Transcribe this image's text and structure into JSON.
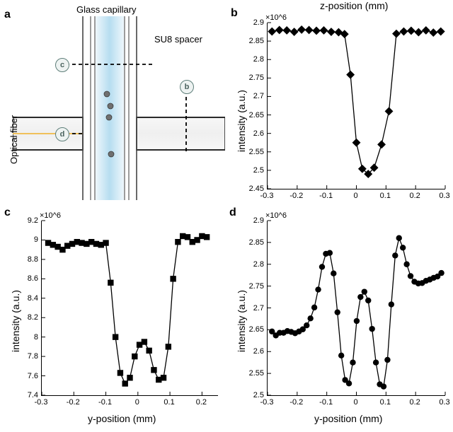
{
  "global": {
    "fg": "#000000",
    "line_color": "#000000",
    "marker_fill": "#000000",
    "line_width": 1.3,
    "marker_size": 4.2,
    "tick_fontsize": 11,
    "label_fontsize": 14,
    "panel_label_fontsize": 16
  },
  "panelA": {
    "letter": "a",
    "labels": {
      "top": "Glass capillary",
      "right": "SU8 spacer",
      "left_rot": "Optical fiber"
    },
    "tag_c": "c",
    "tag_d": "d",
    "tag_b": "b",
    "colors": {
      "capillary_fill_a": "#dff0fa",
      "capillary_fill_b": "#b8ddee",
      "capillary_outline": "#4e4e4e",
      "fiber_core": "#f5c468",
      "spacer_outline": "#3b3b3b",
      "spacer_fill": "#f4f4f4",
      "particle": "#6b6b6b"
    }
  },
  "panelB": {
    "letter": "b",
    "xlabel": "z-position (mm)",
    "ylabel": "intensity (a.u.)",
    "exp": "×10^6",
    "marker_shape": "diamond",
    "xlim": [
      -0.3,
      0.3
    ],
    "ylim": [
      2.45,
      2.9
    ],
    "xticks": [
      -0.3,
      -0.2,
      -0.1,
      0,
      0.1,
      0.2,
      0.3
    ],
    "yticks": [
      2.45,
      2.5,
      2.55,
      2.6,
      2.65,
      2.7,
      2.75,
      2.8,
      2.85,
      2.9
    ],
    "xtick_labels": [
      "-0.3",
      "-0.2",
      "-0.1",
      "0",
      "0.1",
      "0.2",
      "0.3"
    ],
    "ytick_labels": [
      "2.45",
      "2.5",
      "2.55",
      "2.6",
      "2.65",
      "2.7",
      "2.75",
      "2.8",
      "2.85",
      "2.9"
    ],
    "x": [
      -0.285,
      -0.26,
      -0.235,
      -0.21,
      -0.185,
      -0.16,
      -0.135,
      -0.11,
      -0.085,
      -0.06,
      -0.04,
      -0.02,
      0.0,
      0.02,
      0.04,
      0.06,
      0.085,
      0.11,
      0.135,
      0.16,
      0.185,
      0.21,
      0.235,
      0.26,
      0.285
    ],
    "y": [
      2.876,
      2.88,
      2.879,
      2.875,
      2.881,
      2.88,
      2.878,
      2.879,
      2.875,
      2.874,
      2.869,
      2.759,
      2.575,
      2.504,
      2.49,
      2.507,
      2.57,
      2.66,
      2.87,
      2.876,
      2.878,
      2.874,
      2.879,
      2.873,
      2.876
    ]
  },
  "panelC": {
    "letter": "c",
    "xlabel": "y-position (mm)",
    "ylabel": "intensity (a.u.)",
    "exp": "×10^6",
    "marker_shape": "square",
    "xlim": [
      -0.3,
      0.25
    ],
    "ylim": [
      7.4,
      9.2
    ],
    "xticks": [
      -0.3,
      -0.2,
      -0.1,
      0,
      0.1,
      0.2
    ],
    "yticks": [
      7.4,
      7.6,
      7.8,
      8.0,
      8.2,
      8.4,
      8.6,
      8.8,
      9.0,
      9.2
    ],
    "xtick_labels": [
      "-0.3",
      "-0.2",
      "-0.1",
      "0",
      "0.1",
      "0.2"
    ],
    "ytick_labels": [
      "7.4",
      "7.6",
      "7.8",
      "8",
      "8.2",
      "8.4",
      "8.6",
      "8.8",
      "9",
      "9.2"
    ],
    "x": [
      -0.28,
      -0.265,
      -0.25,
      -0.235,
      -0.22,
      -0.205,
      -0.19,
      -0.175,
      -0.16,
      -0.145,
      -0.13,
      -0.115,
      -0.1,
      -0.085,
      -0.07,
      -0.055,
      -0.04,
      -0.025,
      -0.01,
      0.005,
      0.02,
      0.035,
      0.05,
      0.065,
      0.08,
      0.095,
      0.11,
      0.125,
      0.14,
      0.155,
      0.17,
      0.185,
      0.2,
      0.215
    ],
    "y": [
      8.97,
      8.95,
      8.93,
      8.9,
      8.94,
      8.96,
      8.98,
      8.97,
      8.96,
      8.98,
      8.96,
      8.95,
      8.97,
      8.56,
      8.0,
      7.63,
      7.52,
      7.58,
      7.8,
      7.92,
      7.95,
      7.86,
      7.66,
      7.56,
      7.58,
      7.9,
      8.6,
      8.98,
      9.04,
      9.03,
      8.98,
      9.0,
      9.04,
      9.03
    ]
  },
  "panelD": {
    "letter": "d",
    "xlabel": "y-position (mm)",
    "ylabel": "intensity (a.u.)",
    "exp": "×10^6",
    "marker_shape": "circle",
    "xlim": [
      -0.3,
      0.3
    ],
    "ylim": [
      2.5,
      2.9
    ],
    "xticks": [
      -0.3,
      -0.2,
      -0.1,
      0,
      0.1,
      0.2,
      0.3
    ],
    "yticks": [
      2.5,
      2.55,
      2.6,
      2.65,
      2.7,
      2.75,
      2.8,
      2.85,
      2.9
    ],
    "xtick_labels": [
      "-0.3",
      "-0.2",
      "-0.1",
      "0",
      "0.1",
      "0.2",
      "0.3"
    ],
    "ytick_labels": [
      "2.5",
      "2.55",
      "2.6",
      "2.65",
      "2.7",
      "2.75",
      "2.8",
      "2.85",
      "2.9"
    ],
    "x": [
      -0.285,
      -0.272,
      -0.259,
      -0.246,
      -0.233,
      -0.22,
      -0.207,
      -0.194,
      -0.181,
      -0.168,
      -0.155,
      -0.142,
      -0.129,
      -0.116,
      -0.103,
      -0.09,
      -0.077,
      -0.064,
      -0.051,
      -0.038,
      -0.025,
      -0.012,
      0.001,
      0.014,
      0.027,
      0.04,
      0.053,
      0.066,
      0.079,
      0.092,
      0.105,
      0.118,
      0.131,
      0.144,
      0.157,
      0.17,
      0.183,
      0.196,
      0.209,
      0.222,
      0.235,
      0.248,
      0.261,
      0.274,
      0.287
    ],
    "y": [
      2.646,
      2.637,
      2.643,
      2.643,
      2.647,
      2.645,
      2.642,
      2.646,
      2.651,
      2.66,
      2.676,
      2.701,
      2.742,
      2.794,
      2.824,
      2.826,
      2.779,
      2.69,
      2.591,
      2.535,
      2.527,
      2.575,
      2.67,
      2.725,
      2.737,
      2.717,
      2.652,
      2.575,
      2.525,
      2.52,
      2.581,
      2.708,
      2.82,
      2.86,
      2.838,
      2.8,
      2.773,
      2.76,
      2.756,
      2.757,
      2.762,
      2.765,
      2.769,
      2.772,
      2.78
    ]
  }
}
